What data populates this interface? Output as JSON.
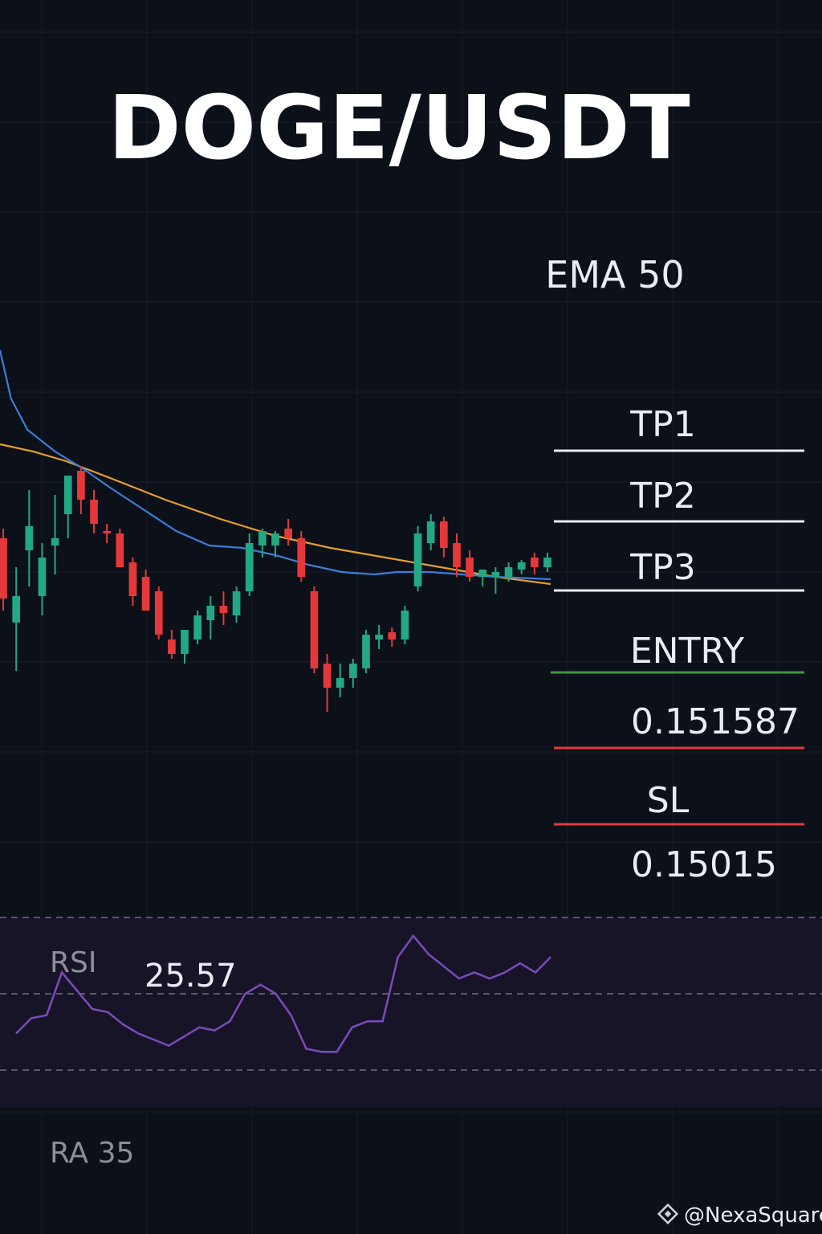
{
  "chart_data": {
    "type": "candlestick",
    "title": "DOGE/USDT",
    "ema_label": "EMA 50",
    "levels": [
      {
        "key": "tp1",
        "label": "TP1",
        "value_label": "",
        "color": "#e9ecf2"
      },
      {
        "key": "tp2",
        "label": "TP2",
        "value_label": "",
        "color": "#e9ecf2"
      },
      {
        "key": "tp3",
        "label": "TP3",
        "value_label": "",
        "color": "#e9ecf2"
      },
      {
        "key": "entry",
        "label": "ENTRY",
        "value_label": "0.151587",
        "color": "#3d9b3d"
      },
      {
        "key": "sl",
        "label": "SL",
        "value_label": "0.15015",
        "color": "#e5383b"
      }
    ],
    "candles": [
      {
        "o": 60,
        "h": 64,
        "l": 30,
        "c": 35
      },
      {
        "o": 25,
        "h": 48,
        "l": 5,
        "c": 36
      },
      {
        "o": 55,
        "h": 80,
        "l": 40,
        "c": 65
      },
      {
        "o": 36,
        "h": 58,
        "l": 28,
        "c": 52
      },
      {
        "o": 57,
        "h": 78,
        "l": 45,
        "c": 60
      },
      {
        "o": 70,
        "h": 85,
        "l": 60,
        "c": 86
      },
      {
        "o": 88,
        "h": 90,
        "l": 70,
        "c": 76
      },
      {
        "o": 76,
        "h": 80,
        "l": 62,
        "c": 66
      },
      {
        "o": 63,
        "h": 66,
        "l": 58,
        "c": 62
      },
      {
        "o": 62,
        "h": 64,
        "l": 48,
        "c": 48
      },
      {
        "o": 50,
        "h": 52,
        "l": 32,
        "c": 36
      },
      {
        "o": 44,
        "h": 47,
        "l": 30,
        "c": 30
      },
      {
        "o": 38,
        "h": 40,
        "l": 18,
        "c": 20
      },
      {
        "o": 18,
        "h": 22,
        "l": 10,
        "c": 12
      },
      {
        "o": 12,
        "h": 22,
        "l": 8,
        "c": 22
      },
      {
        "o": 18,
        "h": 30,
        "l": 16,
        "c": 28
      },
      {
        "o": 26,
        "h": 36,
        "l": 18,
        "c": 32
      },
      {
        "o": 32,
        "h": 38,
        "l": 24,
        "c": 29
      },
      {
        "o": 28,
        "h": 40,
        "l": 25,
        "c": 38
      },
      {
        "o": 38,
        "h": 62,
        "l": 36,
        "c": 58
      },
      {
        "o": 57,
        "h": 64,
        "l": 52,
        "c": 63
      },
      {
        "o": 57,
        "h": 63,
        "l": 52,
        "c": 62
      },
      {
        "o": 64,
        "h": 68,
        "l": 57,
        "c": 60
      },
      {
        "o": 60,
        "h": 63,
        "l": 42,
        "c": 44
      },
      {
        "o": 38,
        "h": 40,
        "l": 4,
        "c": 6
      },
      {
        "o": 8,
        "h": 12,
        "l": -12,
        "c": -2
      },
      {
        "o": -2,
        "h": 8,
        "l": -6,
        "c": 2
      },
      {
        "o": 2,
        "h": 10,
        "l": -2,
        "c": 8
      },
      {
        "o": 6,
        "h": 22,
        "l": 4,
        "c": 20
      },
      {
        "o": 18,
        "h": 24,
        "l": 14,
        "c": 20
      },
      {
        "o": 21,
        "h": 23,
        "l": 15,
        "c": 18
      },
      {
        "o": 18,
        "h": 32,
        "l": 16,
        "c": 30
      },
      {
        "o": 40,
        "h": 65,
        "l": 38,
        "c": 62
      },
      {
        "o": 58,
        "h": 70,
        "l": 55,
        "c": 67
      },
      {
        "o": 67,
        "h": 69,
        "l": 52,
        "c": 56
      },
      {
        "o": 58,
        "h": 62,
        "l": 44,
        "c": 48
      },
      {
        "o": 52,
        "h": 55,
        "l": 42,
        "c": 44
      },
      {
        "o": 44,
        "h": 47,
        "l": 40,
        "c": 47
      },
      {
        "o": 44,
        "h": 48,
        "l": 37,
        "c": 46
      },
      {
        "o": 44,
        "h": 50,
        "l": 42,
        "c": 48
      },
      {
        "o": 47,
        "h": 51,
        "l": 45,
        "c": 50
      },
      {
        "o": 52,
        "h": 54,
        "l": 45,
        "c": 48
      },
      {
        "o": 48,
        "h": 54,
        "l": 46,
        "c": 52
      }
    ],
    "ema50": [
      [
        0,
        99
      ],
      [
        0.06,
        96
      ],
      [
        0.12,
        92
      ],
      [
        0.2,
        85
      ],
      [
        0.3,
        76
      ],
      [
        0.4,
        68
      ],
      [
        0.5,
        61
      ],
      [
        0.6,
        56
      ],
      [
        0.7,
        52
      ],
      [
        0.8,
        48
      ],
      [
        0.9,
        44
      ],
      [
        1.0,
        41
      ]
    ],
    "ma_fast": [
      [
        0,
        138
      ],
      [
        0.02,
        118
      ],
      [
        0.05,
        105
      ],
      [
        0.1,
        96
      ],
      [
        0.15,
        89
      ],
      [
        0.2,
        81
      ],
      [
        0.26,
        72
      ],
      [
        0.32,
        63
      ],
      [
        0.38,
        57
      ],
      [
        0.44,
        56
      ],
      [
        0.5,
        53
      ],
      [
        0.56,
        49
      ],
      [
        0.62,
        46
      ],
      [
        0.68,
        45
      ],
      [
        0.72,
        46
      ],
      [
        0.78,
        46
      ],
      [
        0.84,
        45
      ],
      [
        0.9,
        44
      ],
      [
        1.0,
        43
      ]
    ],
    "rsi": {
      "label": "RSI",
      "value_label": "25.57",
      "bottom_label": "RA 35",
      "values": [
        32,
        37,
        38,
        52,
        46,
        40,
        39,
        35,
        32,
        30,
        28,
        31,
        34,
        33,
        36,
        45,
        48,
        45,
        38,
        27,
        26,
        26,
        34,
        36,
        36,
        57,
        64,
        58,
        54,
        50,
        52,
        50,
        52,
        55,
        52,
        57
      ]
    }
  },
  "watermark": {
    "text": "@NexaSquare",
    "icon": "diamond-logo-icon"
  },
  "colors": {
    "background": "#0c1019",
    "bull": "#22a884",
    "bear": "#e5383b",
    "ema50": "#e59e2e",
    "ma_fast": "#3a7fd6",
    "rsi_line": "#7b4bb8"
  }
}
